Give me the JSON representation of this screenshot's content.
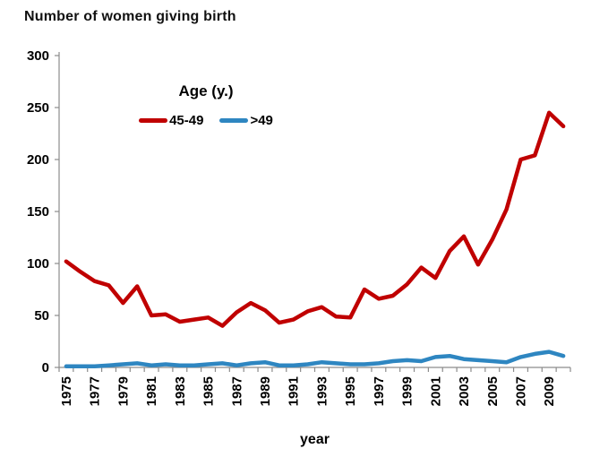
{
  "title": "Number of women giving birth",
  "xaxis_title": "year",
  "legend": {
    "title": "Age (y.)",
    "items": [
      {
        "label": "45-49",
        "color": "#C00000"
      },
      {
        "label": ">49",
        "color": "#2E86C1"
      }
    ]
  },
  "colors": {
    "series_45_49": "#C00000",
    "series_gt49": "#2E86C1",
    "axis": "#8C8C8C",
    "text": "#000000"
  },
  "chart_data": {
    "type": "line",
    "title": "Number of women giving birth",
    "xlabel": "year",
    "ylabel": "",
    "x": [
      1975,
      1976,
      1977,
      1978,
      1979,
      1980,
      1981,
      1982,
      1983,
      1984,
      1985,
      1986,
      1987,
      1988,
      1989,
      1990,
      1991,
      1992,
      1993,
      1994,
      1995,
      1996,
      1997,
      1998,
      1999,
      2000,
      2001,
      2002,
      2003,
      2004,
      2005,
      2006,
      2007,
      2008,
      2009,
      2010
    ],
    "x_tick_labels": [
      "1975",
      "1977",
      "1979",
      "1981",
      "1983",
      "1985",
      "1987",
      "1989",
      "1991",
      "1993",
      "1995",
      "1997",
      "1999",
      "2001",
      "2003",
      "2005",
      "2007",
      "2009"
    ],
    "series": [
      {
        "name": "45-49",
        "color": "#C00000",
        "values": [
          102,
          92,
          83,
          79,
          62,
          78,
          50,
          51,
          44,
          46,
          48,
          40,
          53,
          62,
          55,
          43,
          46,
          54,
          58,
          49,
          48,
          75,
          66,
          69,
          80,
          96,
          86,
          112,
          126,
          99,
          123,
          152,
          200,
          204,
          245,
          232
        ]
      },
      {
        "name": ">49",
        "color": "#2E86C1",
        "values": [
          1,
          1,
          1,
          2,
          3,
          4,
          2,
          3,
          2,
          2,
          3,
          4,
          2,
          4,
          5,
          2,
          2,
          3,
          5,
          4,
          3,
          3,
          4,
          6,
          7,
          6,
          10,
          11,
          8,
          7,
          6,
          5,
          10,
          13,
          15,
          11
        ]
      }
    ],
    "ylim": [
      0,
      300
    ],
    "yticks": [
      0,
      50,
      100,
      150,
      200,
      250,
      300
    ],
    "grid": false,
    "legend_title": "Age (y.)",
    "legend_position": "upper-left-inside"
  }
}
